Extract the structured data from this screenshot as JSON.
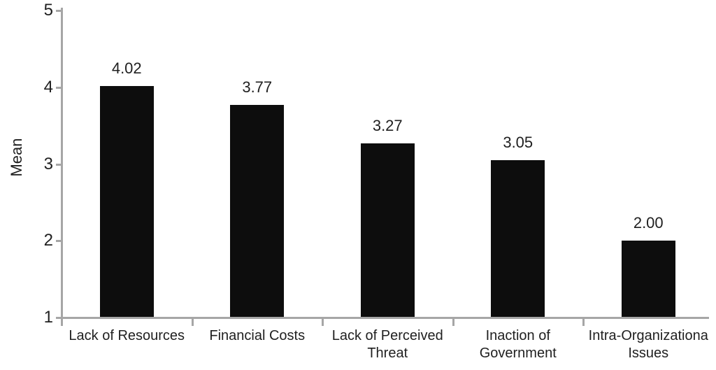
{
  "figure": {
    "background": "#ffffff"
  },
  "chart_data": {
    "type": "bar",
    "title": "",
    "xlabel": "",
    "ylabel": "Mean",
    "ylim": [
      1,
      5
    ],
    "yticks": [
      "1",
      "2",
      "3",
      "4",
      "5"
    ],
    "grid": false,
    "legend": false,
    "bar_color": "#0d0d0d",
    "axis_color": "#a6a6a6",
    "text_color": "#1f1f1f",
    "categories": [
      "Lack of Resources",
      "Financial Costs",
      "Lack of Perceived Threat",
      "Inaction of Government",
      "Intra-Organizationa Issues"
    ],
    "category_label_lines": [
      [
        "Lack of Resources"
      ],
      [
        "Financial Costs"
      ],
      [
        "Lack of Perceived",
        "Threat"
      ],
      [
        "Inaction of",
        "Government"
      ],
      [
        "Intra-Organizationa",
        "Issues"
      ]
    ],
    "values": [
      4.02,
      3.77,
      3.27,
      3.05,
      2.0
    ],
    "value_labels": [
      "4.02",
      "3.77",
      "3.27",
      "3.05",
      "2.00"
    ]
  }
}
